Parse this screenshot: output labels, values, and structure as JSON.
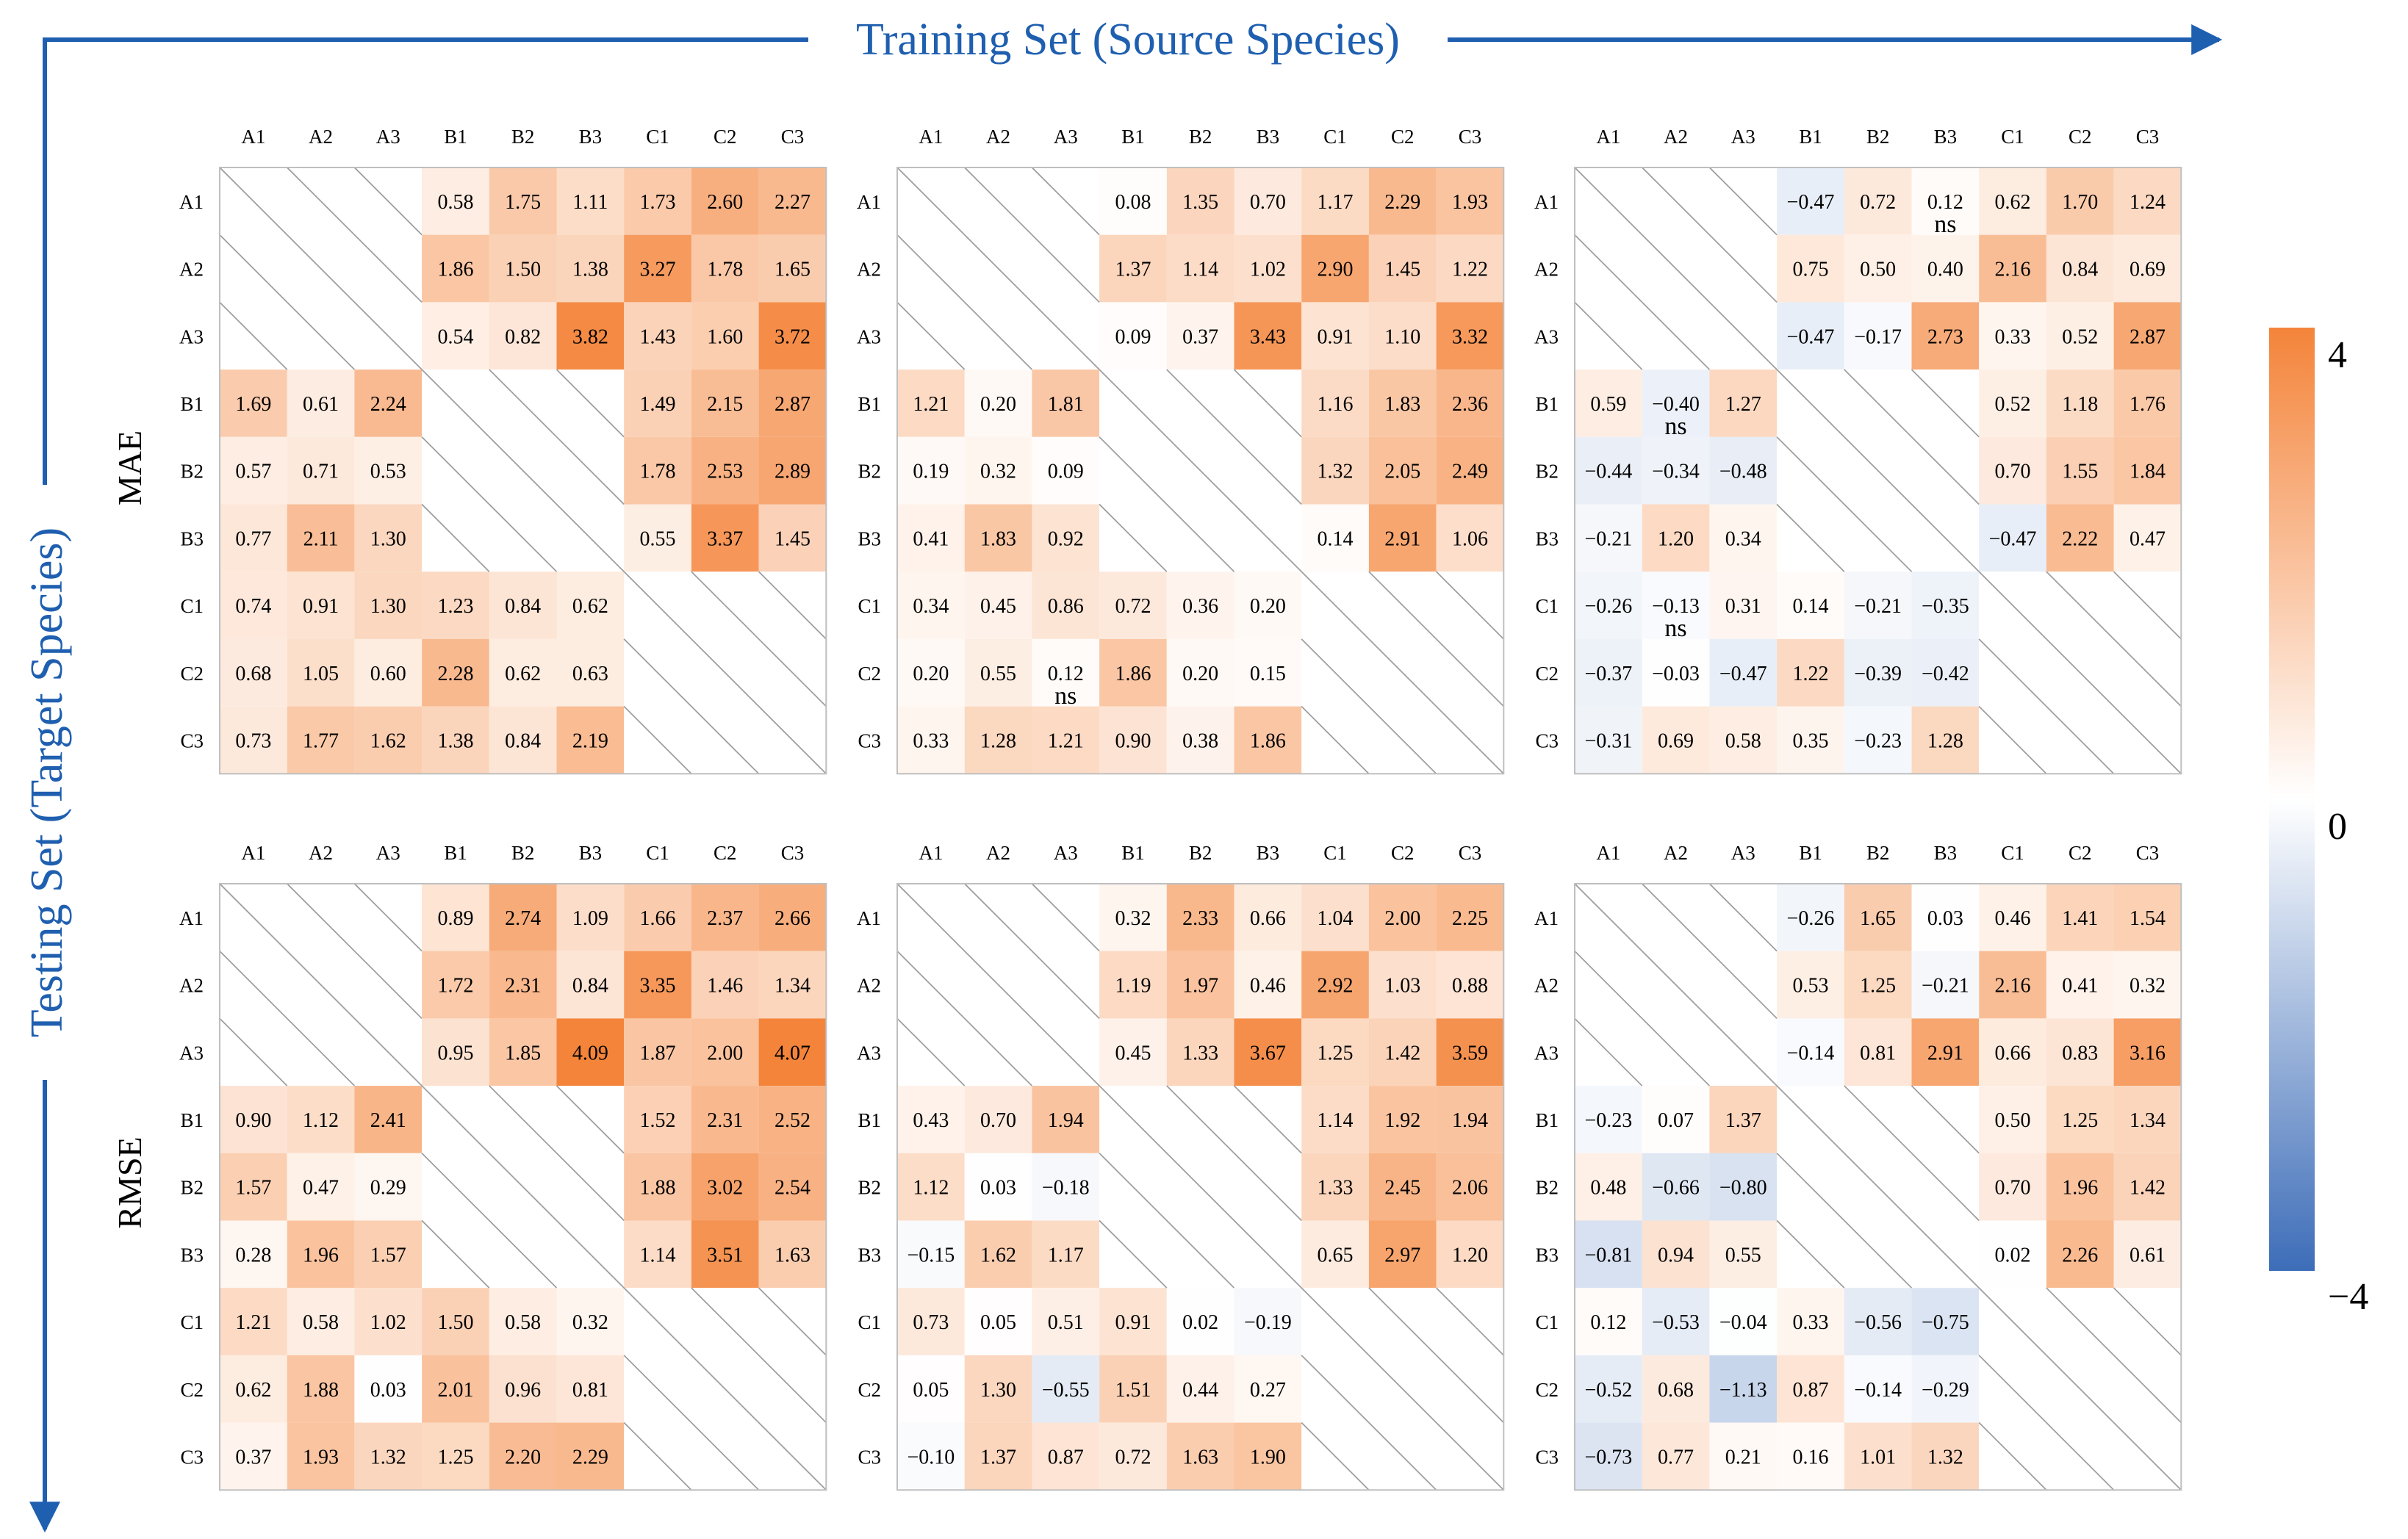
{
  "figure": {
    "x_axis_title": "Training Set (Source Species)",
    "y_axis_title": "Testing Set (Target Species)",
    "row_titles": [
      "MAE",
      "RMSE"
    ],
    "colors": {
      "axis_arrow": "#1f5fb0",
      "positive": "#f4843a",
      "negative": "#3d6db8",
      "zero": "#ffffff",
      "grid_line": "#bfbfbf",
      "diag_hatch": "#9e9e9e"
    }
  },
  "chart_data": {
    "type": "heatmap",
    "labels": [
      "A1",
      "A2",
      "A3",
      "B1",
      "B2",
      "B3",
      "C1",
      "C2",
      "C3"
    ],
    "colorbar": {
      "min": -4,
      "max": 4,
      "ticks": [
        "4",
        "0",
        "−4"
      ]
    },
    "ns_marker": "ns",
    "panels": [
      {
        "row": "MAE",
        "col": 1,
        "values": [
          [
            null,
            null,
            null,
            0.58,
            1.75,
            1.11,
            1.73,
            2.6,
            2.27
          ],
          [
            null,
            null,
            null,
            1.86,
            1.5,
            1.38,
            3.27,
            1.78,
            1.65
          ],
          [
            null,
            null,
            null,
            0.54,
            0.82,
            3.82,
            1.43,
            1.6,
            3.72
          ],
          [
            1.69,
            0.61,
            2.24,
            null,
            null,
            null,
            1.49,
            2.15,
            2.87
          ],
          [
            0.57,
            0.71,
            0.53,
            null,
            null,
            null,
            1.78,
            2.53,
            2.89
          ],
          [
            0.77,
            2.11,
            1.3,
            null,
            null,
            null,
            0.55,
            3.37,
            1.45
          ],
          [
            0.74,
            0.91,
            1.3,
            1.23,
            0.84,
            0.62,
            null,
            null,
            null
          ],
          [
            0.68,
            1.05,
            0.6,
            2.28,
            0.62,
            0.63,
            null,
            null,
            null
          ],
          [
            0.73,
            1.77,
            1.62,
            1.38,
            0.84,
            2.19,
            null,
            null,
            null
          ]
        ],
        "ns": []
      },
      {
        "row": "MAE",
        "col": 2,
        "values": [
          [
            null,
            null,
            null,
            0.08,
            1.35,
            0.7,
            1.17,
            2.29,
            1.93
          ],
          [
            null,
            null,
            null,
            1.37,
            1.14,
            1.02,
            2.9,
            1.45,
            1.22
          ],
          [
            null,
            null,
            null,
            0.09,
            0.37,
            3.43,
            0.91,
            1.1,
            3.32
          ],
          [
            1.21,
            0.2,
            1.81,
            null,
            null,
            null,
            1.16,
            1.83,
            2.36
          ],
          [
            0.19,
            0.32,
            0.09,
            null,
            null,
            null,
            1.32,
            2.05,
            2.49
          ],
          [
            0.41,
            1.83,
            0.92,
            null,
            null,
            null,
            0.14,
            2.91,
            1.06
          ],
          [
            0.34,
            0.45,
            0.86,
            0.72,
            0.36,
            0.2,
            null,
            null,
            null
          ],
          [
            0.2,
            0.55,
            0.12,
            1.86,
            0.2,
            0.15,
            null,
            null,
            null
          ],
          [
            0.33,
            1.28,
            1.21,
            0.9,
            0.38,
            1.86,
            null,
            null,
            null
          ]
        ],
        "ns": [
          [
            7,
            2
          ]
        ]
      },
      {
        "row": "MAE",
        "col": 3,
        "values": [
          [
            null,
            null,
            null,
            -0.47,
            0.72,
            0.12,
            0.62,
            1.7,
            1.24
          ],
          [
            null,
            null,
            null,
            0.75,
            0.5,
            0.4,
            2.16,
            0.84,
            0.69
          ],
          [
            null,
            null,
            null,
            -0.47,
            -0.17,
            2.73,
            0.33,
            0.52,
            2.87
          ],
          [
            0.59,
            -0.4,
            1.27,
            null,
            null,
            null,
            0.52,
            1.18,
            1.76
          ],
          [
            -0.44,
            -0.34,
            -0.48,
            null,
            null,
            null,
            0.7,
            1.55,
            1.84
          ],
          [
            -0.21,
            1.2,
            0.34,
            null,
            null,
            null,
            -0.47,
            2.22,
            0.47
          ],
          [
            -0.26,
            -0.13,
            0.31,
            0.14,
            -0.21,
            -0.35,
            null,
            null,
            null
          ],
          [
            -0.37,
            -0.03,
            -0.47,
            1.22,
            -0.39,
            -0.42,
            null,
            null,
            null
          ],
          [
            -0.31,
            0.69,
            0.58,
            0.35,
            -0.23,
            1.28,
            null,
            null,
            null
          ]
        ],
        "ns": [
          [
            0,
            5
          ],
          [
            3,
            1
          ],
          [
            6,
            1
          ]
        ]
      },
      {
        "row": "RMSE",
        "col": 1,
        "values": [
          [
            null,
            null,
            null,
            0.89,
            2.74,
            1.09,
            1.66,
            2.37,
            2.66
          ],
          [
            null,
            null,
            null,
            1.72,
            2.31,
            0.84,
            3.35,
            1.46,
            1.34
          ],
          [
            null,
            null,
            null,
            0.95,
            1.85,
            4.09,
            1.87,
            2.0,
            4.07
          ],
          [
            0.9,
            1.12,
            2.41,
            null,
            null,
            null,
            1.52,
            2.31,
            2.52
          ],
          [
            1.57,
            0.47,
            0.29,
            null,
            null,
            null,
            1.88,
            3.02,
            2.54
          ],
          [
            0.28,
            1.96,
            1.57,
            null,
            null,
            null,
            1.14,
            3.51,
            1.63
          ],
          [
            1.21,
            0.58,
            1.02,
            1.5,
            0.58,
            0.32,
            null,
            null,
            null
          ],
          [
            0.62,
            1.88,
            0.03,
            2.01,
            0.96,
            0.81,
            null,
            null,
            null
          ],
          [
            0.37,
            1.93,
            1.32,
            1.25,
            2.2,
            2.29,
            null,
            null,
            null
          ]
        ],
        "ns": []
      },
      {
        "row": "RMSE",
        "col": 2,
        "values": [
          [
            null,
            null,
            null,
            0.32,
            2.33,
            0.66,
            1.04,
            2.0,
            2.25
          ],
          [
            null,
            null,
            null,
            1.19,
            1.97,
            0.46,
            2.92,
            1.03,
            0.88
          ],
          [
            null,
            null,
            null,
            0.45,
            1.33,
            3.67,
            1.25,
            1.42,
            3.59
          ],
          [
            0.43,
            0.7,
            1.94,
            null,
            null,
            null,
            1.14,
            1.92,
            1.94
          ],
          [
            1.12,
            0.03,
            -0.18,
            null,
            null,
            null,
            1.33,
            2.45,
            2.06
          ],
          [
            -0.15,
            1.62,
            1.17,
            null,
            null,
            null,
            0.65,
            2.97,
            1.2
          ],
          [
            0.73,
            0.05,
            0.51,
            0.91,
            0.02,
            -0.19,
            null,
            null,
            null
          ],
          [
            0.05,
            1.3,
            -0.55,
            1.51,
            0.44,
            0.27,
            null,
            null,
            null
          ],
          [
            -0.1,
            1.37,
            0.87,
            0.72,
            1.63,
            1.9,
            null,
            null,
            null
          ]
        ],
        "ns": []
      },
      {
        "row": "RMSE",
        "col": 3,
        "values": [
          [
            null,
            null,
            null,
            -0.26,
            1.65,
            0.03,
            0.46,
            1.41,
            1.54
          ],
          [
            null,
            null,
            null,
            0.53,
            1.25,
            -0.21,
            2.16,
            0.41,
            0.32
          ],
          [
            null,
            null,
            null,
            -0.14,
            0.81,
            2.91,
            0.66,
            0.83,
            3.16
          ],
          [
            -0.23,
            0.07,
            1.37,
            null,
            null,
            null,
            0.5,
            1.25,
            1.34
          ],
          [
            0.48,
            -0.66,
            -0.8,
            null,
            null,
            null,
            0.7,
            1.96,
            1.42
          ],
          [
            -0.81,
            0.94,
            0.55,
            null,
            null,
            null,
            0.02,
            2.26,
            0.61
          ],
          [
            0.12,
            -0.53,
            -0.04,
            0.33,
            -0.56,
            -0.75,
            null,
            null,
            null
          ],
          [
            -0.52,
            0.68,
            -1.13,
            0.87,
            -0.14,
            -0.29,
            null,
            null,
            null
          ],
          [
            -0.73,
            0.77,
            0.21,
            0.16,
            1.01,
            1.32,
            null,
            null,
            null
          ]
        ],
        "ns": []
      }
    ]
  }
}
